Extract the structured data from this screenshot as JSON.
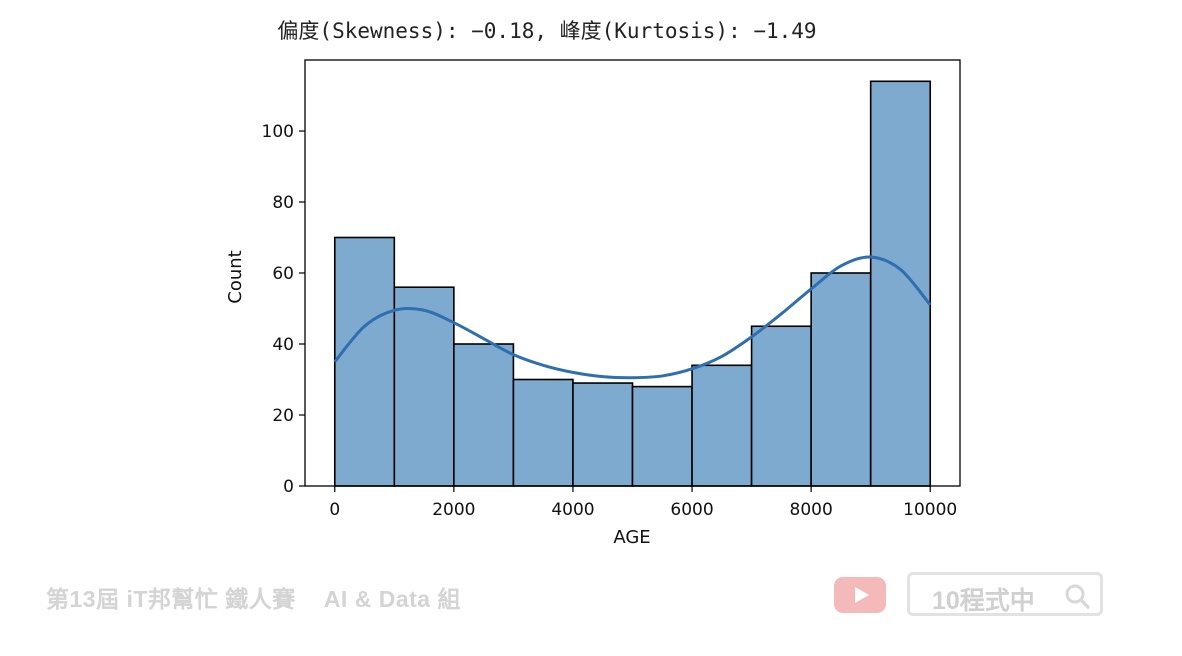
{
  "chart_data": {
    "type": "bar",
    "title": "偏度(Skewness): −0.18, 峰度(Kurtosis): −1.49",
    "xlabel": "AGE",
    "ylabel": "Count",
    "xlim": [
      -500,
      10500
    ],
    "ylim": [
      0,
      120
    ],
    "xticks": [
      0,
      2000,
      4000,
      6000,
      8000,
      10000
    ],
    "yticks": [
      0,
      20,
      40,
      60,
      80,
      100
    ],
    "bin_edges": [
      0,
      1000,
      2000,
      3000,
      4000,
      5000,
      6000,
      7000,
      8000,
      9000,
      10000
    ],
    "values": [
      70,
      56,
      40,
      30,
      29,
      28,
      34,
      45,
      60,
      114
    ],
    "bar_color": "#7eaacf",
    "bar_edge_color": "#000000",
    "kde": {
      "x": [
        0,
        500,
        1000,
        1500,
        2000,
        2500,
        3000,
        3500,
        4000,
        4500,
        5000,
        5500,
        6000,
        6500,
        7000,
        7500,
        8000,
        8500,
        9000,
        9500,
        10000
      ],
      "y": [
        35,
        45,
        49.5,
        49.5,
        46,
        41.5,
        37,
        34,
        32,
        30.8,
        30.5,
        31,
        33,
        36.5,
        42,
        48.5,
        55.5,
        62,
        64.5,
        61,
        51
      ],
      "color": "#2f6fb0"
    },
    "grid": false,
    "legend": "none"
  },
  "footer": {
    "event_label": "第13屆 iT邦幫忙 鐵人賽",
    "group_label": "AI & Data 組",
    "search_text": "10程式中"
  }
}
